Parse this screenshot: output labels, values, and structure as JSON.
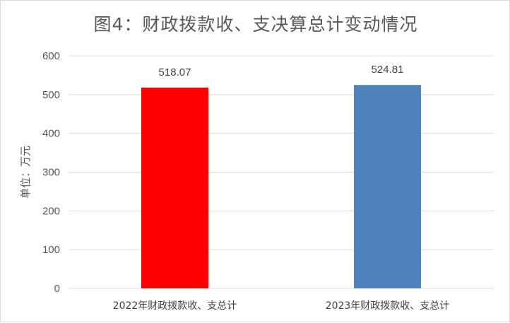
{
  "chart_data": {
    "type": "bar",
    "title": "图4：财政拨款收、支决算总计变动情况",
    "ylabel": "单位：万元",
    "xlabel": "",
    "categories": [
      "2022年财政拨款收、支总计",
      "2023年财政拨款收、支总计"
    ],
    "values": [
      518.07,
      524.81
    ],
    "data_labels": [
      "518.07",
      "524.81"
    ],
    "bar_colors": [
      "#ff0000",
      "#4f81bd"
    ],
    "ylim": [
      0,
      600
    ],
    "yticks": [
      0,
      100,
      200,
      300,
      400,
      500,
      600
    ],
    "grid": true,
    "legend": "none"
  }
}
